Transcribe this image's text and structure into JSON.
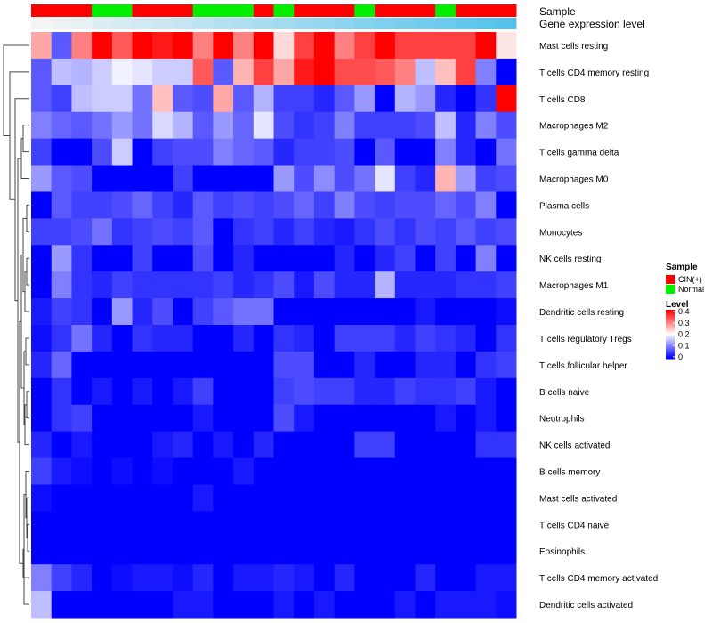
{
  "chart_data": {
    "type": "heatmap",
    "annotation_tracks": [
      "Sample",
      "Gene expression level"
    ],
    "row_labels": [
      "Mast cells resting",
      "T cells CD4 memory resting",
      "T cells CD8",
      "Macrophages M2",
      "T cells gamma delta",
      "Macrophages M0",
      "Plasma cells",
      "Monocytes",
      "NK cells resting",
      "Macrophages M1",
      "Dendritic cells resting",
      "T cells regulatory  Tregs",
      "T cells follicular helper",
      "B cells naive",
      "Neutrophils",
      "NK cells activated",
      "B cells memory",
      "Mast cells activated",
      "T cells CD4 naive",
      "Eosinophils",
      "T cells CD4 memory activated",
      "Dendritic cells activated"
    ],
    "sample_groups": [
      "CIN(+)",
      "CIN(+)",
      "CIN(+)",
      "Normal",
      "Normal",
      "CIN(+)",
      "CIN(+)",
      "CIN(+)",
      "Normal",
      "Normal",
      "Normal",
      "CIN(+)",
      "Normal",
      "CIN(+)",
      "CIN(+)",
      "CIN(+)",
      "Normal",
      "CIN(+)",
      "CIN(+)",
      "CIN(+)",
      "Normal",
      "CIN(+)",
      "CIN(+)",
      "CIN(+)"
    ],
    "expression_level": [
      0.0,
      0.02,
      0.04,
      0.07,
      0.09,
      0.11,
      0.13,
      0.15,
      0.17,
      0.2,
      0.22,
      0.24,
      0.26,
      0.28,
      0.3,
      0.33,
      0.35,
      0.37,
      0.39,
      0.41,
      0.43,
      0.46,
      0.48,
      0.5
    ],
    "values": [
      [
        0.27,
        0.07,
        0.3,
        0.4,
        0.33,
        0.4,
        0.38,
        0.4,
        0.3,
        0.4,
        0.3,
        0.4,
        0.23,
        0.35,
        0.4,
        0.3,
        0.35,
        0.4,
        0.35,
        0.35,
        0.35,
        0.35,
        0.4,
        0.22
      ],
      [
        0.07,
        0.15,
        0.14,
        0.16,
        0.19,
        0.18,
        0.16,
        0.16,
        0.33,
        0.07,
        0.26,
        0.35,
        0.27,
        0.38,
        0.4,
        0.34,
        0.34,
        0.33,
        0.3,
        0.15,
        0.25,
        0.35,
        0.1,
        0.0
      ],
      [
        0.07,
        0.05,
        0.15,
        0.16,
        0.16,
        0.09,
        0.25,
        0.07,
        0.06,
        0.27,
        0.07,
        0.14,
        0.05,
        0.05,
        0.03,
        0.07,
        0.12,
        0.0,
        0.14,
        0.12,
        0.03,
        0.0,
        0.04,
        0.4
      ],
      [
        0.1,
        0.08,
        0.07,
        0.09,
        0.12,
        0.09,
        0.17,
        0.14,
        0.07,
        0.12,
        0.08,
        0.18,
        0.06,
        0.04,
        0.05,
        0.1,
        0.05,
        0.05,
        0.05,
        0.06,
        0.15,
        0.03,
        0.1,
        0.06
      ],
      [
        0.05,
        0.0,
        0.0,
        0.06,
        0.16,
        0.0,
        0.05,
        0.06,
        0.06,
        0.1,
        0.08,
        0.07,
        0.03,
        0.05,
        0.05,
        0.06,
        0.0,
        0.07,
        0.0,
        0.0,
        0.1,
        0.03,
        0.0,
        0.09
      ],
      [
        0.12,
        0.07,
        0.06,
        0.0,
        0.0,
        0.0,
        0.0,
        0.05,
        0.0,
        0.0,
        0.0,
        0.0,
        0.12,
        0.06,
        0.11,
        0.06,
        0.09,
        0.18,
        0.05,
        0.03,
        0.26,
        0.12,
        0.05,
        0.06
      ],
      [
        0.0,
        0.07,
        0.05,
        0.05,
        0.06,
        0.08,
        0.05,
        0.03,
        0.07,
        0.05,
        0.06,
        0.05,
        0.06,
        0.08,
        0.05,
        0.1,
        0.06,
        0.05,
        0.06,
        0.06,
        0.08,
        0.06,
        0.1,
        0.0
      ],
      [
        0.05,
        0.05,
        0.06,
        0.09,
        0.04,
        0.05,
        0.06,
        0.05,
        0.07,
        0.0,
        0.04,
        0.05,
        0.03,
        0.05,
        0.03,
        0.02,
        0.04,
        0.06,
        0.04,
        0.06,
        0.05,
        0.07,
        0.05,
        0.06
      ],
      [
        0.0,
        0.12,
        0.04,
        0.0,
        0.0,
        0.05,
        0.0,
        0.0,
        0.06,
        0.0,
        0.03,
        0.0,
        0.0,
        0.0,
        0.0,
        0.03,
        0.0,
        0.03,
        0.05,
        0.0,
        0.05,
        0.0,
        0.1,
        0.0
      ],
      [
        0.0,
        0.1,
        0.04,
        0.03,
        0.05,
        0.04,
        0.04,
        0.04,
        0.04,
        0.05,
        0.03,
        0.04,
        0.06,
        0.02,
        0.06,
        0.03,
        0.03,
        0.14,
        0.03,
        0.03,
        0.03,
        0.04,
        0.04,
        0.05
      ],
      [
        0.02,
        0.05,
        0.04,
        0.0,
        0.12,
        0.03,
        0.06,
        0.0,
        0.05,
        0.07,
        0.09,
        0.09,
        0.0,
        0.0,
        0.0,
        0.0,
        0.0,
        0.0,
        0.0,
        0.02,
        0.0,
        0.0,
        0.0,
        0.01
      ],
      [
        0.01,
        0.04,
        0.09,
        0.03,
        0.0,
        0.04,
        0.03,
        0.03,
        0.0,
        0.0,
        0.03,
        0.0,
        0.04,
        0.03,
        0.0,
        0.05,
        0.05,
        0.05,
        0.03,
        0.05,
        0.04,
        0.03,
        0.0,
        0.04
      ],
      [
        0.03,
        0.08,
        0.0,
        0.0,
        0.0,
        0.0,
        0.0,
        0.0,
        0.0,
        0.0,
        0.0,
        0.0,
        0.06,
        0.06,
        0.0,
        0.0,
        0.03,
        0.0,
        0.0,
        0.03,
        0.03,
        0.0,
        0.04,
        0.05
      ],
      [
        0.0,
        0.04,
        0.0,
        0.02,
        0.0,
        0.02,
        0.0,
        0.02,
        0.05,
        0.0,
        0.0,
        0.0,
        0.05,
        0.06,
        0.05,
        0.05,
        0.03,
        0.03,
        0.05,
        0.04,
        0.04,
        0.05,
        0.02,
        0.0
      ],
      [
        0.0,
        0.04,
        0.05,
        0.0,
        0.0,
        0.0,
        0.0,
        0.0,
        0.02,
        0.0,
        0.0,
        0.0,
        0.06,
        0.02,
        0.0,
        0.0,
        0.0,
        0.0,
        0.0,
        0.0,
        0.02,
        0.0,
        0.02,
        0.0
      ],
      [
        0.03,
        0.0,
        0.02,
        0.0,
        0.0,
        0.0,
        0.02,
        0.03,
        0.0,
        0.02,
        0.0,
        0.03,
        0.0,
        0.0,
        0.0,
        0.0,
        0.05,
        0.05,
        0.0,
        0.0,
        0.0,
        0.0,
        0.04,
        0.04
      ],
      [
        0.05,
        0.02,
        0.01,
        0.0,
        0.01,
        0.0,
        0.01,
        0.0,
        0.0,
        0.0,
        0.02,
        0.0,
        0.0,
        0.0,
        0.0,
        0.0,
        0.0,
        0.0,
        0.0,
        0.0,
        0.0,
        0.0,
        0.0,
        0.0
      ],
      [
        0.01,
        0.0,
        0.0,
        0.0,
        0.0,
        0.0,
        0.0,
        0.0,
        0.02,
        0.0,
        0.0,
        0.0,
        0.0,
        0.0,
        0.0,
        0.0,
        0.0,
        0.0,
        0.0,
        0.0,
        0.0,
        0.0,
        0.0,
        0.0
      ],
      [
        0.0,
        0.0,
        0.0,
        0.0,
        0.0,
        0.0,
        0.0,
        0.0,
        0.0,
        0.0,
        0.0,
        0.0,
        0.0,
        0.0,
        0.0,
        0.0,
        0.0,
        0.0,
        0.0,
        0.0,
        0.0,
        0.0,
        0.0,
        0.0
      ],
      [
        0.0,
        0.0,
        0.0,
        0.0,
        0.0,
        0.0,
        0.0,
        0.0,
        0.0,
        0.0,
        0.0,
        0.0,
        0.0,
        0.0,
        0.0,
        0.0,
        0.0,
        0.0,
        0.0,
        0.0,
        0.0,
        0.0,
        0.0,
        0.0
      ],
      [
        0.1,
        0.05,
        0.03,
        0.0,
        0.01,
        0.02,
        0.02,
        0.01,
        0.03,
        0.0,
        0.02,
        0.02,
        0.03,
        0.02,
        0.0,
        0.03,
        0.0,
        0.0,
        0.0,
        0.03,
        0.0,
        0.0,
        0.02,
        0.02
      ],
      [
        0.15,
        0.0,
        0.0,
        0.0,
        0.0,
        0.0,
        0.0,
        0.02,
        0.02,
        0.0,
        0.0,
        0.0,
        0.02,
        0.0,
        0.02,
        0.0,
        0.0,
        0.0,
        0.02,
        0.0,
        0.02,
        0.02,
        0.02,
        0.01
      ]
    ],
    "legend": [
      {
        "title": "Sample",
        "entries": [
          {
            "label": "CIN(+)",
            "color": "#ff0000"
          },
          {
            "label": "Normal",
            "color": "#00ee00"
          }
        ]
      },
      {
        "title": "Level",
        "ticks": [
          "0.4",
          "0.3",
          "0.2",
          "0.1",
          "0"
        ],
        "range": [
          0,
          0.4
        ],
        "colors": [
          "#0000ff",
          "#ffffff",
          "#ff0000"
        ]
      }
    ],
    "track_colors": {
      "Sample": {
        "CIN(+)": "#ff0000",
        "Normal": "#00ee00"
      },
      "Gene expression level": [
        "#f4f4f4",
        "#56c3ec"
      ]
    },
    "color_scale": {
      "low": "#0000ff",
      "mid": "#ffffff",
      "high": "#ff0000",
      "min": 0,
      "max": 0.4
    },
    "dendrogram": "rows clustered (left side)"
  }
}
